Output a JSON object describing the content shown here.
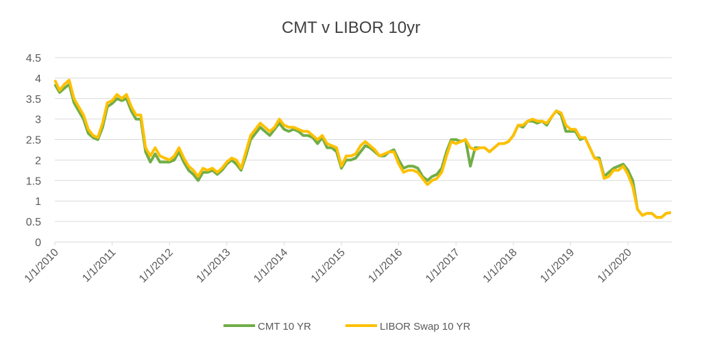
{
  "chart_data": {
    "type": "line",
    "title": "CMT v LIBOR  10yr",
    "xlabel": "",
    "ylabel": "",
    "ylim": [
      0,
      4.5
    ],
    "yticks": [
      "0",
      "0.5",
      "1",
      "1.5",
      "2",
      "2.5",
      "3",
      "3.5",
      "4",
      "4.5"
    ],
    "xticks": [
      "1/1/2010",
      "1/1/2011",
      "1/1/2012",
      "1/1/2013",
      "1/1/2014",
      "1/1/2015",
      "1/1/2016",
      "1/1/2017",
      "1/1/2018",
      "1/1/2019",
      "1/1/2020"
    ],
    "x_start": "2010-01",
    "x_step": "month",
    "grid": "horizontal",
    "legend_position": "bottom",
    "series": [
      {
        "name": "CMT 10 YR",
        "color": "#70AD47",
        "values": [
          3.85,
          3.65,
          3.75,
          3.85,
          3.4,
          3.2,
          3.0,
          2.65,
          2.55,
          2.5,
          2.8,
          3.3,
          3.38,
          3.5,
          3.45,
          3.5,
          3.2,
          3.0,
          3.0,
          2.2,
          1.95,
          2.15,
          1.95,
          1.95,
          1.95,
          2.0,
          2.2,
          1.95,
          1.75,
          1.65,
          1.5,
          1.7,
          1.7,
          1.75,
          1.65,
          1.75,
          1.9,
          2.0,
          1.9,
          1.75,
          2.1,
          2.5,
          2.65,
          2.8,
          2.7,
          2.6,
          2.75,
          2.9,
          2.75,
          2.7,
          2.75,
          2.7,
          2.6,
          2.6,
          2.55,
          2.4,
          2.55,
          2.3,
          2.3,
          2.2,
          1.8,
          2.0,
          2.0,
          2.05,
          2.2,
          2.35,
          2.3,
          2.2,
          2.1,
          2.1,
          2.2,
          2.25,
          2.0,
          1.8,
          1.85,
          1.85,
          1.8,
          1.6,
          1.5,
          1.6,
          1.65,
          1.8,
          2.2,
          2.5,
          2.5,
          2.45,
          2.5,
          1.85,
          2.3,
          2.3,
          2.3,
          2.2,
          2.3,
          2.4,
          2.4,
          2.45,
          2.6,
          2.85,
          2.8,
          2.95,
          2.95,
          2.9,
          2.95,
          2.85,
          3.05,
          3.2,
          3.1,
          2.7,
          2.7,
          2.7,
          2.5,
          2.55,
          2.3,
          2.05,
          2.05,
          1.6,
          1.7,
          1.8,
          1.85,
          1.9,
          1.75,
          1.5,
          0.8,
          0.65,
          0.7,
          0.7,
          0.6,
          0.6,
          0.7,
          0.72
        ]
      },
      {
        "name": "LIBOR Swap 10 YR",
        "color": "#FFC000",
        "values": [
          3.95,
          3.7,
          3.85,
          3.95,
          3.5,
          3.3,
          3.1,
          2.75,
          2.6,
          2.55,
          2.9,
          3.4,
          3.45,
          3.6,
          3.5,
          3.6,
          3.3,
          3.1,
          3.1,
          2.3,
          2.1,
          2.3,
          2.1,
          2.05,
          2.0,
          2.1,
          2.3,
          2.05,
          1.85,
          1.75,
          1.6,
          1.8,
          1.75,
          1.8,
          1.7,
          1.8,
          1.95,
          2.05,
          2.0,
          1.8,
          2.2,
          2.6,
          2.75,
          2.9,
          2.8,
          2.7,
          2.8,
          3.0,
          2.85,
          2.8,
          2.8,
          2.75,
          2.7,
          2.7,
          2.6,
          2.5,
          2.6,
          2.4,
          2.35,
          2.3,
          1.85,
          2.1,
          2.1,
          2.15,
          2.35,
          2.45,
          2.35,
          2.25,
          2.1,
          2.15,
          2.2,
          2.2,
          1.9,
          1.7,
          1.75,
          1.75,
          1.7,
          1.55,
          1.4,
          1.5,
          1.55,
          1.7,
          2.1,
          2.45,
          2.4,
          2.45,
          2.5,
          2.3,
          2.25,
          2.3,
          2.3,
          2.2,
          2.3,
          2.4,
          2.4,
          2.45,
          2.6,
          2.85,
          2.85,
          2.95,
          3.0,
          2.95,
          2.95,
          2.9,
          3.05,
          3.2,
          3.15,
          2.85,
          2.75,
          2.75,
          2.55,
          2.55,
          2.3,
          2.05,
          2.0,
          1.55,
          1.6,
          1.75,
          1.75,
          1.85,
          1.65,
          1.35,
          0.8,
          0.65,
          0.7,
          0.7,
          0.6,
          0.6,
          0.7,
          0.72
        ]
      }
    ]
  }
}
